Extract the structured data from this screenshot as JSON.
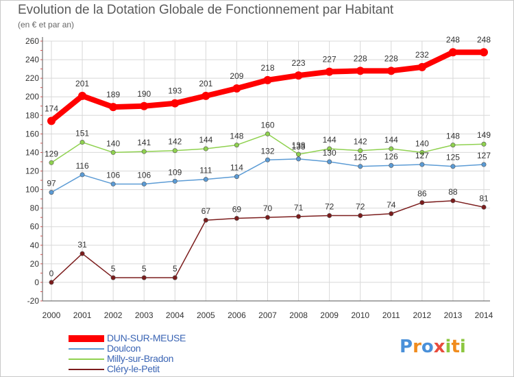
{
  "title": "Evolution de la Dotation Globale de Fonctionnement par Habitant",
  "subtitle": "(en € et par an)",
  "colors": {
    "dun": "#ff0000",
    "doulcon": "#5b9bd5",
    "milly": "#8fd14f",
    "clery": "#7b1c1c",
    "grid": "#d8d8d8",
    "axis": "#555555"
  },
  "chart_data": {
    "type": "line",
    "title": "Evolution de la Dotation Globale de Fonctionnement par Habitant",
    "subtitle": "(en € et par an)",
    "x": [
      "2000",
      "2001",
      "2002",
      "2003",
      "2004",
      "2005",
      "2006",
      "2007",
      "2008",
      "2009",
      "2010",
      "2011",
      "2012",
      "2013",
      "2014"
    ],
    "ylim": [
      -20,
      260
    ],
    "yticks": [
      -20,
      0,
      20,
      40,
      60,
      80,
      100,
      120,
      140,
      160,
      180,
      200,
      220,
      240,
      260
    ],
    "grid": true,
    "legend_position": "bottom-left",
    "series": [
      {
        "name": "DUN-SUR-MEUSE",
        "values": [
          174,
          201,
          189,
          190,
          193,
          201,
          209,
          218,
          223,
          227,
          228,
          228,
          232,
          248,
          248
        ]
      },
      {
        "name": "Doulcon",
        "values": [
          97,
          116,
          106,
          106,
          109,
          111,
          114,
          132,
          133,
          130,
          125,
          126,
          127,
          125,
          127
        ]
      },
      {
        "name": "Milly-sur-Bradon",
        "values": [
          129,
          151,
          140,
          141,
          142,
          144,
          148,
          160,
          138,
          144,
          142,
          144,
          140,
          148,
          149
        ]
      },
      {
        "name": "Cléry-le-Petit",
        "values": [
          0,
          31,
          5,
          5,
          5,
          67,
          69,
          70,
          71,
          72,
          72,
          74,
          86,
          88,
          81
        ]
      }
    ]
  },
  "logo": {
    "letters": [
      "P",
      "r",
      "o",
      "x",
      "i",
      "t",
      "i"
    ],
    "colors": [
      "#4a90d9",
      "#f08c1e",
      "#4a90d9",
      "#e84c3d",
      "#8cc63f",
      "#f08c1e",
      "#8cc63f"
    ]
  }
}
